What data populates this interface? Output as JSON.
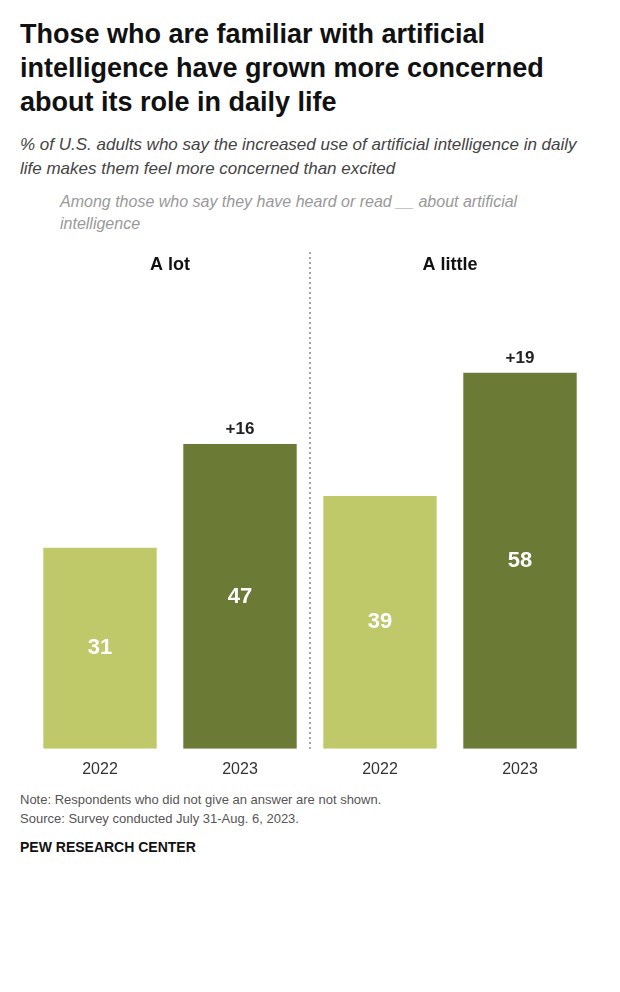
{
  "chart_data": {
    "type": "bar",
    "title": "Those who are familiar with artificial intelligence have grown more concerned about its role in daily life",
    "subtitle": "% of U.S. adults who say the increased use of artificial intelligence in daily life makes them feel more concerned than excited",
    "sub_note": "Among those who say they have heard or read __ about artificial intelligence",
    "categories": [
      "2022",
      "2023",
      "2022",
      "2023"
    ],
    "groups": [
      "A lot",
      "A lot",
      "A little",
      "A little"
    ],
    "values": [
      31,
      47,
      39,
      58
    ],
    "colors": [
      "#bfc96a",
      "#6b7a35",
      "#bfc96a",
      "#6b7a35"
    ],
    "change_labels": [
      null,
      "+16",
      null,
      "+19"
    ],
    "data_labels": true,
    "ylim": [
      0,
      72
    ],
    "grid": false,
    "tick_labels": "x",
    "notes": [
      "Note: Respondents who did not give an answer are not shown.",
      "Source: Survey conducted July 31-Aug. 6, 2023."
    ],
    "credit": "PEW RESEARCH CENTER"
  }
}
